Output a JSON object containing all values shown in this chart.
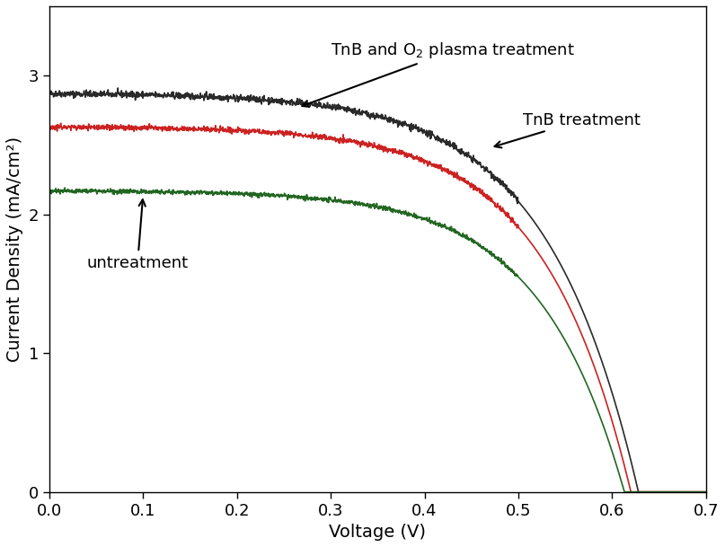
{
  "title": "",
  "xlabel": "Voltage (V)",
  "ylabel": "Current Density (mA/cm²)",
  "xlim": [
    0.0,
    0.7
  ],
  "ylim": [
    0.0,
    3.5
  ],
  "xticks": [
    0.0,
    0.1,
    0.2,
    0.3,
    0.4,
    0.5,
    0.6,
    0.7
  ],
  "yticks": [
    0,
    1,
    2,
    3
  ],
  "curves": {
    "black": {
      "color": "#2a2a2a",
      "Jsc": 2.87,
      "Voc": 0.628,
      "n": 3.8,
      "label": "TnB and O2 plasma treatment"
    },
    "red": {
      "color": "#cc2222",
      "Jsc": 2.63,
      "Voc": 0.62,
      "n": 3.6,
      "label": "TnB treatment"
    },
    "green": {
      "color": "#226622",
      "Jsc": 2.17,
      "Voc": 0.613,
      "n": 3.5,
      "label": "untreatment"
    }
  },
  "noise_seed": 42,
  "noise_amplitude_black": 0.012,
  "noise_amplitude_red": 0.01,
  "noise_amplitude_green": 0.008,
  "noise_cutoff_V": 0.5,
  "figure_width": 8.07,
  "figure_height": 6.09,
  "dpi": 100,
  "font_size": 13,
  "tick_fontsize": 13,
  "label_fontsize": 14,
  "linewidth": 1.2
}
